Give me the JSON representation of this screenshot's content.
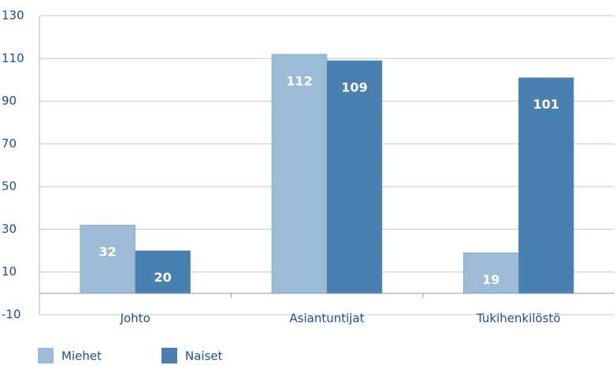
{
  "chart_data": {
    "type": "bar",
    "categories": [
      "Johto",
      "Asiantuntijat",
      "Tukihenkilöstö"
    ],
    "series": [
      {
        "name": "Miehet",
        "color": "#9bbbd6",
        "values": [
          32,
          112,
          19
        ]
      },
      {
        "name": "Naiset",
        "color": "#4a80b0",
        "values": [
          20,
          109,
          101
        ]
      }
    ],
    "ylim": [
      -10,
      130
    ],
    "yticks": [
      -10,
      10,
      30,
      50,
      70,
      90,
      110,
      130
    ],
    "grid": true,
    "legend": "bottom-left"
  }
}
